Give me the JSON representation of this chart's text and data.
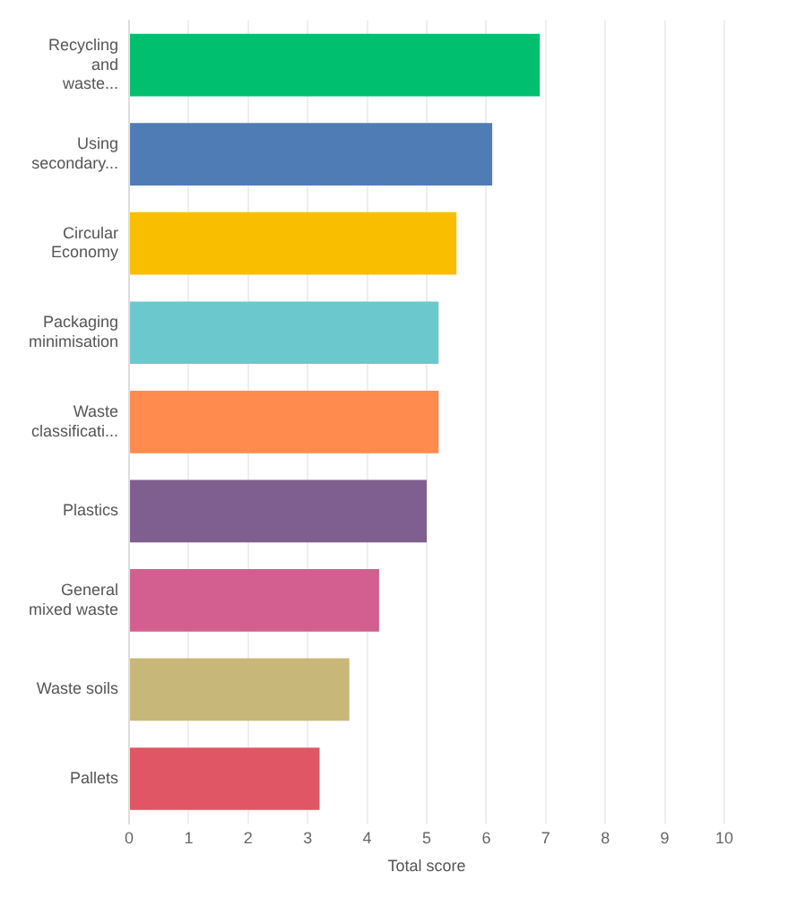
{
  "chart_data": {
    "type": "bar",
    "orientation": "horizontal",
    "xlabel": "Total score",
    "categories": [
      "Recycling and waste...",
      "Using secondary...",
      "Circular Economy",
      "Packaging minimisation",
      "Waste classificati...",
      "Plastics",
      "General mixed waste",
      "Waste soils",
      "Pallets"
    ],
    "values": [
      6.9,
      6.1,
      5.5,
      5.2,
      5.2,
      5.0,
      4.2,
      3.7,
      3.2
    ],
    "colors": [
      "#00bf6f",
      "#507cb6",
      "#f9be00",
      "#6bc8cd",
      "#ff8b4f",
      "#7f5f90",
      "#d25f90",
      "#c7b879",
      "#e05665"
    ],
    "xlim": [
      0,
      10
    ],
    "xticks": [
      0,
      1,
      2,
      3,
      4,
      5,
      6,
      7,
      8,
      9,
      10
    ],
    "grid": "x",
    "legend": false
  }
}
